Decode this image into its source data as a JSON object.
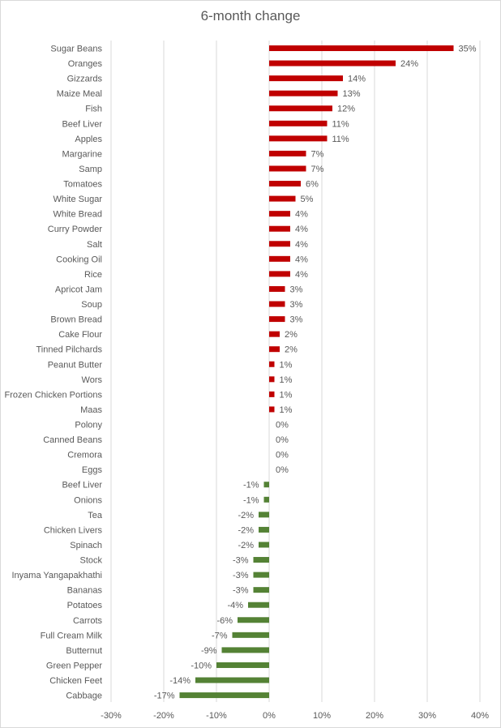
{
  "chart_data": {
    "type": "bar",
    "orientation": "horizontal",
    "title": "6-month change",
    "xlabel": "",
    "ylabel": "",
    "xlim": [
      -30,
      40
    ],
    "unit": "%",
    "grid": true,
    "x_ticks": [
      "-30%",
      "-20%",
      "-10%",
      "0%",
      "10%",
      "20%",
      "30%",
      "40%"
    ],
    "x_tick_values": [
      -30,
      -20,
      -10,
      0,
      10,
      20,
      30,
      40
    ],
    "colors": {
      "positive": "#c00000",
      "negative": "#548235",
      "grid": "#d9d9d9",
      "text": "#595959"
    },
    "categories": [
      "Sugar Beans",
      "Oranges",
      "Gizzards",
      "Maize Meal",
      "Fish",
      "Beef Liver",
      "Apples",
      "Margarine",
      "Samp",
      "Tomatoes",
      "White Sugar",
      "White Bread",
      "Curry Powder",
      "Salt",
      "Cooking Oil",
      "Rice",
      "Apricot Jam",
      "Soup",
      "Brown Bread",
      "Cake Flour",
      "Tinned Pilchards",
      "Peanut Butter",
      "Wors",
      "Frozen Chicken Portions",
      "Maas",
      "Polony",
      "Canned Beans",
      "Cremora",
      "Eggs",
      "Beef Liver",
      "Onions",
      "Tea",
      "Chicken Livers",
      "Spinach",
      "Stock",
      "Inyama Yangapakhathi",
      "Bananas",
      "Potatoes",
      "Carrots",
      "Full Cream Milk",
      "Butternut",
      "Green Pepper",
      "Chicken Feet",
      "Cabbage"
    ],
    "values": [
      35,
      24,
      14,
      13,
      12,
      11,
      11,
      7,
      7,
      6,
      5,
      4,
      4,
      4,
      4,
      4,
      3,
      3,
      3,
      2,
      2,
      1,
      1,
      1,
      1,
      0,
      0,
      0,
      0,
      -1,
      -1,
      -2,
      -2,
      -2,
      -3,
      -3,
      -3,
      -4,
      -6,
      -7,
      -9,
      -10,
      -14,
      -17
    ],
    "data_labels": [
      "35%",
      "24%",
      "14%",
      "13%",
      "12%",
      "11%",
      "11%",
      "7%",
      "7%",
      "6%",
      "5%",
      "4%",
      "4%",
      "4%",
      "4%",
      "4%",
      "3%",
      "3%",
      "3%",
      "2%",
      "2%",
      "1%",
      "1%",
      "1%",
      "1%",
      "0%",
      "0%",
      "0%",
      "0%",
      "-1%",
      "-1%",
      "-2%",
      "-2%",
      "-2%",
      "-3%",
      "-3%",
      "-3%",
      "-4%",
      "-6%",
      "-7%",
      "-9%",
      "-10%",
      "-14%",
      "-17%"
    ]
  }
}
